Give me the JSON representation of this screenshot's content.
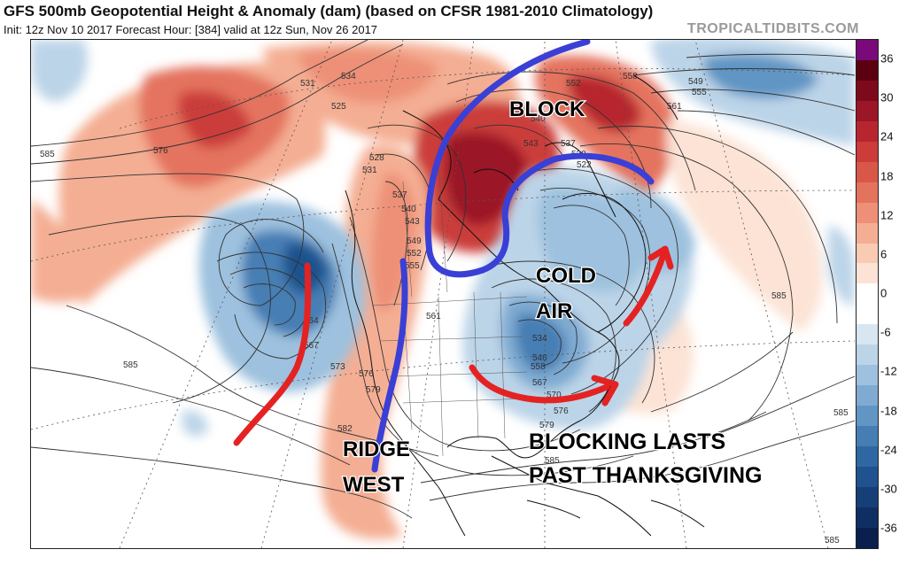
{
  "header": {
    "title": "GFS 500mb Geopotential Height & Anomaly (dam) (based on CFSR 1981-2010 Climatology)",
    "subtitle": "Init: 12z Nov 10 2017   Forecast Hour: [384]   valid at 12z Sun, Nov 26 2017",
    "watermark": "TROPICALTIDBITS.COM"
  },
  "annotations": {
    "block": "BLOCK",
    "cold1": "COLD",
    "cold2": "AIR",
    "ridge1": "RIDGE",
    "ridge2": "WEST",
    "blocking1": "BLOCKING LASTS",
    "blocking2": "PAST THANKSGIVING"
  },
  "contour_labels": [
    "531",
    "534",
    "525",
    "528",
    "531",
    "537",
    "540",
    "543",
    "549",
    "552",
    "555",
    "561",
    "564",
    "567",
    "573",
    "576",
    "579",
    "582",
    "585",
    "576",
    "585",
    "585",
    "552",
    "558",
    "561",
    "549",
    "555",
    "540",
    "543",
    "537",
    "522",
    "528",
    "534",
    "546",
    "558",
    "567",
    "570",
    "576",
    "579",
    "585",
    "585",
    "585"
  ],
  "colorbar": {
    "ticks": [
      "36",
      "30",
      "24",
      "18",
      "12",
      "6",
      "0",
      "-6",
      "-12",
      "-18",
      "-24",
      "-30",
      "-36"
    ],
    "colors": [
      "#7a0a7a",
      "#5a0011",
      "#7d0a1a",
      "#9b1626",
      "#b7262f",
      "#cb3c3a",
      "#d95749",
      "#e4735e",
      "#ed9077",
      "#f4ae93",
      "#f9cbb3",
      "#fce3d5",
      "#ffffff",
      "#ffffff",
      "#d8e6f1",
      "#bcd4e8",
      "#9dc1de",
      "#7fabd2",
      "#6195c4",
      "#467eb4",
      "#2f67a2",
      "#1f528e",
      "#163f78",
      "#0f2e62",
      "#0a1f4e"
    ]
  },
  "colors": {
    "blue_marker": "#3a3fd6",
    "red_marker": "#e52222"
  }
}
